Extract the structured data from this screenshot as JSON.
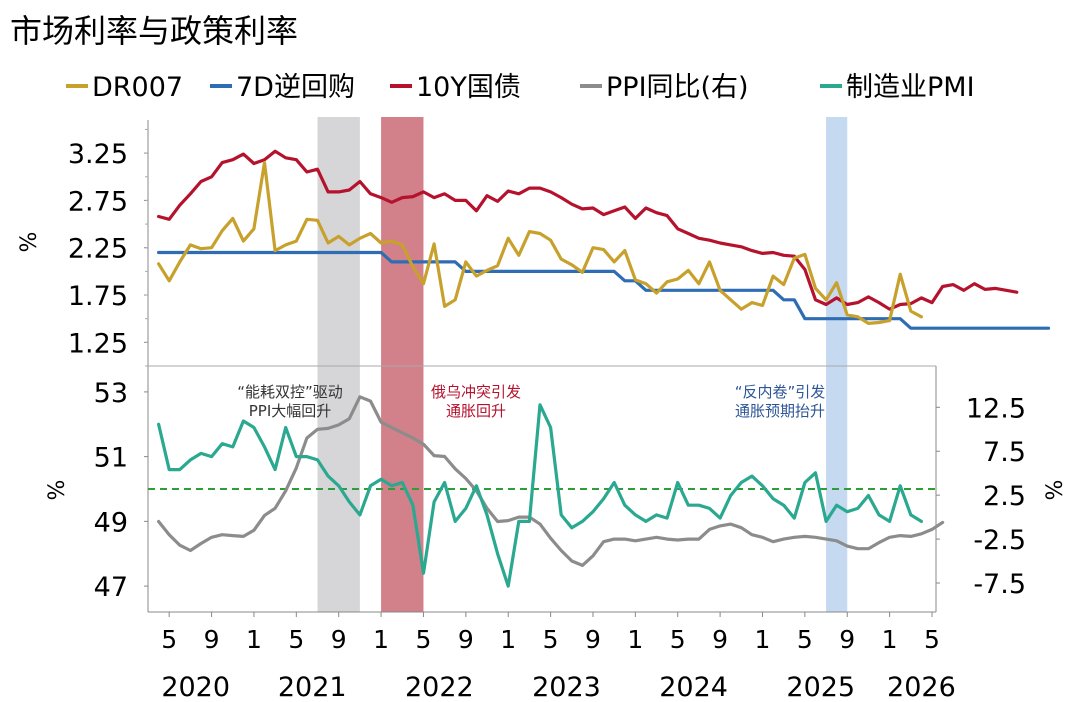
{
  "chart_data": {
    "type": "line",
    "title": "市场利率与政策利率",
    "legend_placement": "top",
    "x_axis": {
      "month_ticks": [
        "5",
        "9",
        "1",
        "5",
        "9",
        "1",
        "5",
        "9",
        "1",
        "5",
        "9",
        "1",
        "5",
        "9",
        "1",
        "5",
        "9",
        "1",
        "5"
      ],
      "year_labels": [
        "2020",
        "2021",
        "2022",
        "2023",
        "2024",
        "2025",
        "2026"
      ],
      "range": [
        "2020-03",
        "2026-05"
      ]
    },
    "shaded_periods": [
      {
        "start": "2021-07",
        "end": "2021-10",
        "color": "#d6d6d8"
      },
      {
        "start": "2022-01",
        "end": "2022-04",
        "color": "#d2808a"
      },
      {
        "start": "2025-07",
        "end": "2025-08",
        "color": "#c5d9f1"
      }
    ],
    "top_panel": {
      "ylabel": "%",
      "ylim": [
        1.0,
        3.6
      ],
      "yticks": [
        "3.25",
        "2.75",
        "2.25",
        "1.75",
        "1.25"
      ],
      "series": [
        {
          "name": "DR007",
          "color": "#c8a12d",
          "values": [
            2.08,
            1.9,
            2.1,
            2.28,
            2.24,
            2.25,
            2.43,
            2.56,
            2.32,
            2.45,
            3.15,
            2.22,
            2.28,
            2.32,
            2.55,
            2.54,
            2.3,
            2.37,
            2.28,
            2.35,
            2.4,
            2.3,
            2.32,
            2.28,
            2.05,
            1.87,
            2.29,
            1.63,
            1.7,
            2.1,
            1.95,
            2.01,
            2.06,
            2.35,
            2.17,
            2.42,
            2.4,
            2.33,
            2.13,
            2.07,
            1.99,
            2.25,
            2.23,
            2.1,
            2.22,
            1.91,
            1.87,
            1.77,
            1.89,
            1.92,
            2.01,
            1.87,
            2.1,
            1.8,
            1.7,
            1.6,
            1.67,
            1.64,
            1.95,
            1.86,
            2.14,
            2.18,
            1.82,
            1.7,
            1.88,
            1.54,
            1.52,
            1.45,
            1.46,
            1.48,
            1.97,
            1.58,
            1.52
          ]
        },
        {
          "name": "7D逆回购",
          "color": "#2e6db4",
          "values": [
            2.2,
            2.2,
            2.2,
            2.2,
            2.2,
            2.2,
            2.2,
            2.2,
            2.2,
            2.2,
            2.2,
            2.2,
            2.2,
            2.2,
            2.2,
            2.2,
            2.2,
            2.2,
            2.2,
            2.2,
            2.2,
            2.2,
            2.1,
            2.1,
            2.1,
            2.1,
            2.1,
            2.1,
            2.1,
            2.0,
            2.0,
            2.0,
            2.0,
            2.0,
            2.0,
            2.0,
            2.0,
            2.0,
            2.0,
            2.0,
            2.0,
            2.0,
            2.0,
            2.0,
            1.9,
            1.9,
            1.8,
            1.8,
            1.8,
            1.8,
            1.8,
            1.8,
            1.8,
            1.8,
            1.8,
            1.8,
            1.8,
            1.8,
            1.8,
            1.7,
            1.7,
            1.5,
            1.5,
            1.5,
            1.5,
            1.5,
            1.5,
            1.5,
            1.5,
            1.5,
            1.5,
            1.4,
            1.4,
            1.4,
            1.4,
            1.4,
            1.4,
            1.4,
            1.4,
            1.4,
            1.4,
            1.4,
            1.4,
            1.4,
            1.4
          ]
        },
        {
          "name": "10Y国债",
          "color": "#b5122e",
          "values": [
            2.58,
            2.55,
            2.7,
            2.82,
            2.95,
            3.0,
            3.15,
            3.18,
            3.24,
            3.14,
            3.18,
            3.27,
            3.2,
            3.18,
            3.05,
            3.08,
            2.84,
            2.84,
            2.86,
            2.95,
            2.82,
            2.78,
            2.73,
            2.78,
            2.79,
            2.84,
            2.78,
            2.82,
            2.75,
            2.75,
            2.64,
            2.8,
            2.74,
            2.85,
            2.82,
            2.88,
            2.88,
            2.84,
            2.78,
            2.71,
            2.66,
            2.67,
            2.6,
            2.64,
            2.68,
            2.56,
            2.67,
            2.62,
            2.59,
            2.45,
            2.4,
            2.35,
            2.33,
            2.3,
            2.28,
            2.26,
            2.22,
            2.19,
            2.2,
            2.17,
            2.16,
            2.02,
            1.7,
            1.65,
            1.72,
            1.65,
            1.67,
            1.73,
            1.67,
            1.6,
            1.65,
            1.66,
            1.72,
            1.67,
            1.84,
            1.86,
            1.8,
            1.87,
            1.81,
            1.82,
            1.8,
            1.78
          ]
        }
      ]
    },
    "bottom_panel": {
      "ylabel_left": "%",
      "ylabel_right": "%",
      "ylim_left": [
        46.2,
        53.8
      ],
      "yticks_left": [
        "53",
        "51",
        "49",
        "47"
      ],
      "ylim_right": [
        -10.8,
        17.2
      ],
      "yticks_right": [
        "12.5",
        "7.5",
        "2.5",
        "-2.5",
        "-7.5"
      ],
      "reference_line": {
        "axis": "left",
        "value": 50,
        "color": "#2e9e3a",
        "style": "dashed"
      },
      "series": [
        {
          "name": "PPI同比(右)",
          "axis": "right",
          "color": "#8c8c8c",
          "values": [
            -0.5,
            -2.0,
            -3.2,
            -3.8,
            -3.0,
            -2.3,
            -2.0,
            -2.1,
            -2.2,
            -1.5,
            0.2,
            1.0,
            3.0,
            5.6,
            9.0,
            10.0,
            10.1,
            10.5,
            11.2,
            13.7,
            13.2,
            10.8,
            10.2,
            9.6,
            9.0,
            8.3,
            7.0,
            6.9,
            5.5,
            4.4,
            3.0,
            1.0,
            -0.5,
            -0.4,
            0.0,
            0.0,
            -0.8,
            -2.4,
            -3.8,
            -5.0,
            -5.5,
            -4.4,
            -2.8,
            -2.5,
            -2.5,
            -2.7,
            -2.5,
            -2.3,
            -2.5,
            -2.6,
            -2.5,
            -2.5,
            -1.4,
            -1.0,
            -0.8,
            -1.2,
            -2.0,
            -2.3,
            -2.8,
            -2.5,
            -2.3,
            -2.2,
            -2.3,
            -2.5,
            -2.7,
            -3.3,
            -3.6,
            -3.6,
            -2.9,
            -2.3,
            -2.1,
            -2.2,
            -1.9,
            -1.4,
            -0.6
          ]
        },
        {
          "name": "制造业PMI",
          "axis": "left",
          "color": "#2aa890",
          "values": [
            52.0,
            50.6,
            50.6,
            50.9,
            51.1,
            51.0,
            51.4,
            51.3,
            52.1,
            51.9,
            51.3,
            50.6,
            51.9,
            51.0,
            51.0,
            50.9,
            50.4,
            50.1,
            49.6,
            49.2,
            50.1,
            50.3,
            50.1,
            50.2,
            49.5,
            47.4,
            49.6,
            50.2,
            49.0,
            49.4,
            50.1,
            49.2,
            48.0,
            47.0,
            49.0,
            49.0,
            52.6,
            51.9,
            49.2,
            48.8,
            49.0,
            49.3,
            49.7,
            50.2,
            49.5,
            49.2,
            49.0,
            49.2,
            49.1,
            50.2,
            49.5,
            49.5,
            49.4,
            49.1,
            49.8,
            50.2,
            50.4,
            50.1,
            49.7,
            49.5,
            49.1,
            50.2,
            50.5,
            49.0,
            49.5,
            49.3,
            49.4,
            49.8,
            49.2,
            49.0,
            50.1,
            49.2,
            49.0
          ]
        }
      ]
    },
    "annotations": [
      {
        "text": "“能耗双控”驱动",
        "color": "#333333",
        "panel": "bottom"
      },
      {
        "text": "PPI大幅回升",
        "color": "#333333",
        "panel": "bottom"
      },
      {
        "text": "俄乌冲突引发",
        "color": "#b5122e",
        "panel": "bottom"
      },
      {
        "text": "通胀回升",
        "color": "#b5122e",
        "panel": "bottom"
      },
      {
        "text": "“反内卷”引发",
        "color": "#2e5597",
        "panel": "bottom"
      },
      {
        "text": "通胀预期抬升",
        "color": "#2e5597",
        "panel": "bottom"
      }
    ]
  }
}
